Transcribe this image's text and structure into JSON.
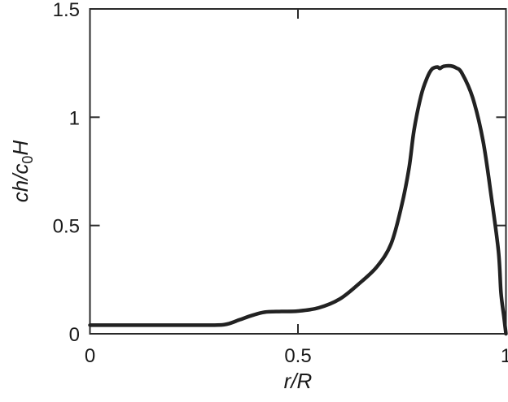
{
  "chart_data": {
    "type": "line",
    "title": "",
    "xlabel": "r/R",
    "ylabel_parts": {
      "main": "ch/c",
      "sub": "0",
      "tail": "H"
    },
    "xlim": [
      0,
      1
    ],
    "ylim": [
      0,
      1.5
    ],
    "xticks": [
      0,
      0.5,
      1
    ],
    "xtick_labels": [
      "0",
      "0.5",
      "1"
    ],
    "yticks": [
      0,
      0.5,
      1,
      1.5
    ],
    "ytick_labels": [
      "0",
      "0.5",
      "1",
      "1.5"
    ],
    "grid": false,
    "line_color": "#222222",
    "series": [
      {
        "x": [
          0,
          0.1,
          0.2,
          0.3,
          0.33,
          0.36,
          0.39,
          0.42,
          0.46,
          0.5,
          0.55,
          0.6,
          0.646,
          0.69,
          0.724,
          0.749,
          0.767,
          0.779,
          0.796,
          0.81,
          0.822,
          0.835,
          0.841,
          0.85,
          0.867,
          0.88,
          0.894,
          0.92,
          0.945,
          0.965,
          0.982,
          0.988,
          0.995,
          1.0
        ],
        "y": [
          0.04,
          0.04,
          0.04,
          0.04,
          0.045,
          0.065,
          0.085,
          0.1,
          0.103,
          0.105,
          0.12,
          0.16,
          0.23,
          0.31,
          0.416,
          0.59,
          0.765,
          0.94,
          1.1,
          1.18,
          1.222,
          1.232,
          1.225,
          1.235,
          1.237,
          1.228,
          1.204,
          1.09,
          0.89,
          0.63,
          0.38,
          0.19,
          0.08,
          0.0
        ]
      }
    ]
  }
}
